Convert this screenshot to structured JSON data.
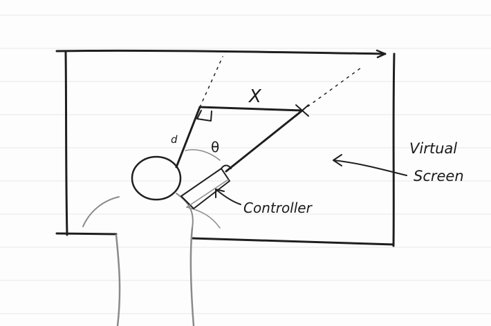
{
  "diagram": {
    "labels": {
      "x": "X",
      "theta": "θ",
      "d": "d",
      "virtual": "Virtual",
      "screen": "Screen",
      "controller": "Controller"
    },
    "colors": {
      "ink": "#1e1e1e",
      "pencil": "#8a8a8a",
      "paper": "#fdfdfd",
      "ruled_lines": "#e6e6e6"
    }
  }
}
